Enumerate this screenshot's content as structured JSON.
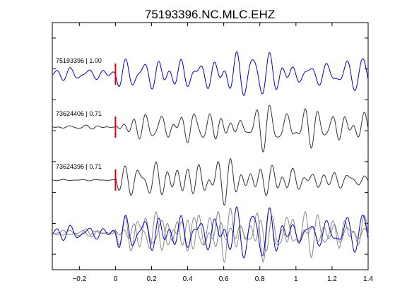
{
  "chart_data": {
    "type": "line",
    "title": "75193396.NC.MLC.EHZ",
    "xlabel": "",
    "ylabel": "",
    "xlim": [
      -0.35,
      1.4
    ],
    "xticks": [
      -0.2,
      0,
      0.2,
      0.4,
      0.6,
      0.8,
      1,
      1.2,
      1.4
    ],
    "xtick_labels": [
      "−0.2",
      "0",
      "0.2",
      "0.4",
      "0.6",
      "0.8",
      "1",
      "1.2",
      "1.4"
    ],
    "pick_time": 0,
    "pick_color": "#e00000",
    "grid": false,
    "legend": "none",
    "traces": [
      {
        "label": "75193396 | 1.00",
        "color": "#0000cc",
        "seed": 11,
        "pre_amp": 0.28,
        "post_amp": 1.0
      },
      {
        "label": "73624406 | 0.71",
        "color": "#333333",
        "seed": 23,
        "pre_amp": 0.1,
        "post_amp": 1.0
      },
      {
        "label": "73624396 | 0.71",
        "color": "#333333",
        "seed": 37,
        "pre_amp": 0.05,
        "post_amp": 1.0
      }
    ],
    "overlay": {
      "traces": [
        {
          "color": "#888888",
          "seed": 23,
          "pre_amp": 0.18,
          "post_amp": 1.0
        },
        {
          "color": "#888888",
          "seed": 37,
          "pre_amp": 0.18,
          "post_amp": 1.0
        },
        {
          "color": "#0000cc",
          "seed": 11,
          "pre_amp": 0.28,
          "post_amp": 1.0
        }
      ]
    }
  }
}
